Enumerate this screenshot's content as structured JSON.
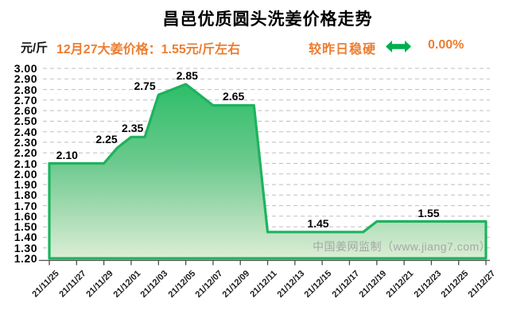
{
  "header": {
    "title": "昌邑优质圆头洗姜价格走势"
  },
  "subheader": {
    "unit_label": "元/斤",
    "price_note": "12月27大姜价格：1.55元/斤左右",
    "trend_label": "较昨日稳硬",
    "trend_icon": "left-right-arrow",
    "trend_value": "0.00%",
    "note_color": "#ED7D31",
    "arrow_color": "#00AE4F"
  },
  "watermark": "中国姜网监制（www.jiang7.com）",
  "chart_data": {
    "type": "area",
    "title": "昌邑优质圆头洗姜价格走势",
    "y_unit": "元/斤",
    "x": [
      "21/11/25",
      "21/11/26",
      "21/11/27",
      "21/11/28",
      "21/11/29",
      "21/11/30",
      "21/12/01",
      "21/12/02",
      "21/12/03",
      "21/12/04",
      "21/12/05",
      "21/12/06",
      "21/12/07",
      "21/12/08",
      "21/12/09",
      "21/12/10",
      "21/12/11",
      "21/12/12",
      "21/12/13",
      "21/12/14",
      "21/12/15",
      "21/12/16",
      "21/12/17",
      "21/12/18",
      "21/12/19",
      "21/12/20",
      "21/12/21",
      "21/12/22",
      "21/12/23",
      "21/12/24",
      "21/12/25",
      "21/12/26",
      "21/12/27"
    ],
    "values": [
      2.1,
      2.1,
      2.1,
      2.1,
      2.1,
      2.25,
      2.35,
      2.35,
      2.75,
      2.8,
      2.85,
      2.75,
      2.65,
      2.65,
      2.65,
      2.65,
      1.45,
      1.45,
      1.45,
      1.45,
      1.45,
      1.45,
      1.45,
      1.45,
      1.55,
      1.55,
      1.55,
      1.55,
      1.55,
      1.55,
      1.55,
      1.55,
      1.55
    ],
    "x_tick_labels": [
      "21/11/25",
      "21/11/27",
      "21/11/29",
      "21/12/01",
      "21/12/03",
      "21/12/05",
      "21/12/07",
      "21/12/09",
      "21/12/11",
      "21/12/13",
      "21/12/15",
      "21/12/17",
      "21/12/19",
      "21/12/21",
      "21/12/23",
      "21/12/25",
      "21/12/27"
    ],
    "ytick_labels": [
      "3.00",
      "2.90",
      "2.80",
      "2.70",
      "2.60",
      "2.50",
      "2.40",
      "2.30",
      "2.20",
      "2.10",
      "2.00",
      "1.90",
      "1.80",
      "1.70",
      "1.60",
      "1.50",
      "1.40",
      "1.30",
      "1.20"
    ],
    "ylim": [
      1.2,
      3.0
    ],
    "ytick_step": 0.1,
    "grid": "dashed",
    "legend": "none",
    "point_labels": [
      {
        "text": "2.10",
        "value": 2.1,
        "pos": 1.3
      },
      {
        "text": "2.25",
        "value": 2.25,
        "pos": 4.2
      },
      {
        "text": "2.35",
        "value": 2.35,
        "pos": 6.1
      },
      {
        "text": "2.75",
        "value": 2.75,
        "pos": 7.0
      },
      {
        "text": "2.85",
        "value": 2.85,
        "pos": 10.1
      },
      {
        "text": "2.65",
        "value": 2.65,
        "pos": 13.5
      },
      {
        "text": "1.45",
        "value": 1.45,
        "pos": 19.7
      },
      {
        "text": "1.55",
        "value": 1.55,
        "pos": 27.8
      }
    ],
    "line_color": "#1DB35E",
    "fill_gradient_top": "#2DBE68",
    "fill_gradient_mid": "#6CC98E",
    "fill_gradient_bottom": "#DCEDD5",
    "grid_color": "#BFBFBF",
    "axis_color": "#4d4d4d"
  }
}
